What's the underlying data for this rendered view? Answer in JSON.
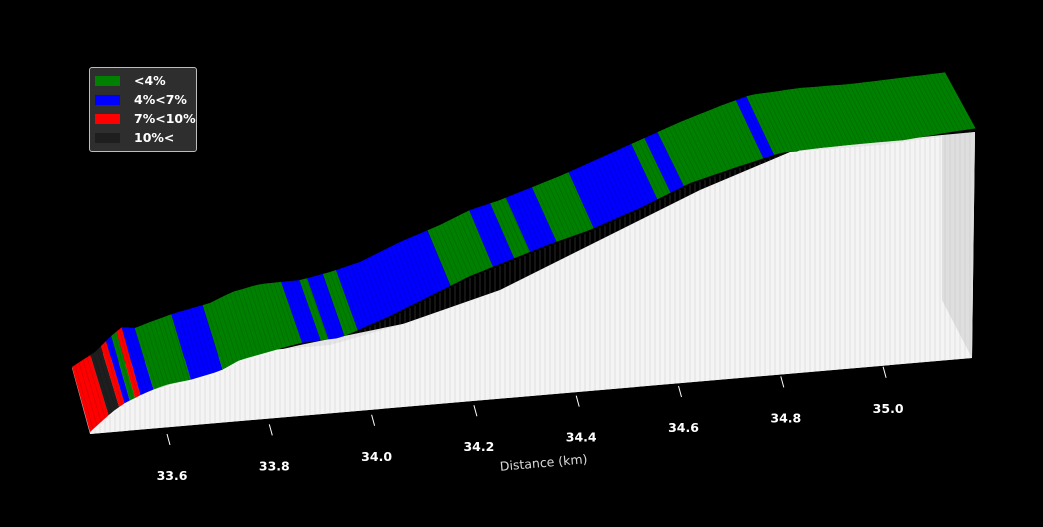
{
  "chart_data": {
    "type": "area",
    "view": "3d",
    "title": "",
    "xlabel": "Distance (km)",
    "ylabel": "",
    "xlim": [
      33.48,
      35.15
    ],
    "x_ticks": [
      33.6,
      33.8,
      34.0,
      34.2,
      34.4,
      34.6,
      34.8,
      35.0
    ],
    "legend": {
      "placement": "top-left",
      "items": [
        {
          "label": "<4%",
          "color": "#008000"
        },
        {
          "label": "4%<7%",
          "color": "#0000ff"
        },
        {
          "label": "7%<10%",
          "color": "#ff0000"
        },
        {
          "label": "10%<",
          "color": "#1e1e1e"
        }
      ]
    },
    "gradient_segments": [
      {
        "start": 33.48,
        "end": 33.515,
        "class": "7%<10%"
      },
      {
        "start": 33.515,
        "end": 33.535,
        "class": "10%<"
      },
      {
        "start": 33.535,
        "end": 33.545,
        "class": "7%<10%"
      },
      {
        "start": 33.545,
        "end": 33.555,
        "class": "4%<7%"
      },
      {
        "start": 33.555,
        "end": 33.565,
        "class": "<4%"
      },
      {
        "start": 33.565,
        "end": 33.575,
        "class": "7%<10%"
      },
      {
        "start": 33.575,
        "end": 33.6,
        "class": "4%<7%"
      },
      {
        "start": 33.6,
        "end": 33.67,
        "class": "<4%"
      },
      {
        "start": 33.67,
        "end": 33.73,
        "class": "4%<7%"
      },
      {
        "start": 33.73,
        "end": 33.88,
        "class": "<4%"
      },
      {
        "start": 33.88,
        "end": 33.915,
        "class": "4%<7%"
      },
      {
        "start": 33.915,
        "end": 33.93,
        "class": "<4%"
      },
      {
        "start": 33.93,
        "end": 33.96,
        "class": "4%<7%"
      },
      {
        "start": 33.96,
        "end": 33.985,
        "class": "<4%"
      },
      {
        "start": 33.985,
        "end": 34.16,
        "class": "4%<7%"
      },
      {
        "start": 34.16,
        "end": 34.24,
        "class": "<4%"
      },
      {
        "start": 34.24,
        "end": 34.28,
        "class": "4%<7%"
      },
      {
        "start": 34.28,
        "end": 34.31,
        "class": "<4%"
      },
      {
        "start": 34.31,
        "end": 34.36,
        "class": "4%<7%"
      },
      {
        "start": 34.36,
        "end": 34.43,
        "class": "<4%"
      },
      {
        "start": 34.43,
        "end": 34.55,
        "class": "4%<7%"
      },
      {
        "start": 34.55,
        "end": 34.575,
        "class": "<4%"
      },
      {
        "start": 34.575,
        "end": 34.6,
        "class": "4%<7%"
      },
      {
        "start": 34.6,
        "end": 34.75,
        "class": "<4%"
      },
      {
        "start": 34.75,
        "end": 34.77,
        "class": "4%<7%"
      },
      {
        "start": 34.77,
        "end": 35.15,
        "class": "<4%"
      }
    ]
  }
}
